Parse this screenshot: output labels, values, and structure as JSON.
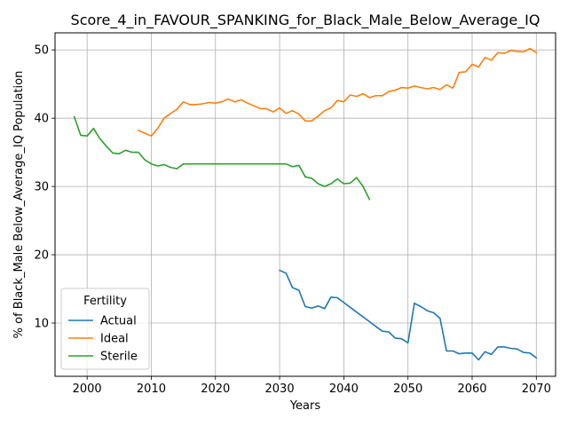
{
  "chart_data": {
    "type": "line",
    "title": "Score_4_in_FAVOUR_SPANKING_for_Black_Male_Below_Average_IQ",
    "xlabel": "Years",
    "ylabel": "% of Black_Male Below_Average_IQ Population",
    "xlim": [
      1995,
      2073
    ],
    "ylim": [
      2.2,
      52.5
    ],
    "xticks": [
      2000,
      2010,
      2020,
      2030,
      2040,
      2050,
      2060,
      2070
    ],
    "yticks": [
      10,
      20,
      30,
      40,
      50
    ],
    "grid": true,
    "legend": {
      "title": "Fertility",
      "placement": "bottom-left"
    },
    "series": [
      {
        "name": "Actual",
        "color": "#1f77b4",
        "x": [
          2030,
          2031,
          2032,
          2033,
          2034,
          2035,
          2036,
          2037,
          2038,
          2039,
          2040,
          2041,
          2042,
          2043,
          2044,
          2045,
          2046,
          2047,
          2048,
          2049,
          2050,
          2051,
          2052,
          2053,
          2054,
          2055,
          2056,
          2057,
          2058,
          2059,
          2060,
          2061,
          2062,
          2063,
          2064,
          2065,
          2066,
          2067,
          2068,
          2069,
          2070
        ],
        "y": [
          17.7,
          17.3,
          15.2,
          14.8,
          12.4,
          12.2,
          12.5,
          12.1,
          13.8,
          13.7,
          13.0,
          12.3,
          11.6,
          10.9,
          10.2,
          9.5,
          8.8,
          8.7,
          7.8,
          7.7,
          7.1,
          12.9,
          12.4,
          11.8,
          11.5,
          10.7,
          5.9,
          5.9,
          5.5,
          5.6,
          5.6,
          4.6,
          5.8,
          5.4,
          6.5,
          6.5,
          6.3,
          6.2,
          5.7,
          5.6,
          4.9
        ]
      },
      {
        "name": "Ideal",
        "color": "#ff7f0e",
        "x": [
          2008,
          2009,
          2010,
          2011,
          2012,
          2013,
          2014,
          2015,
          2016,
          2017,
          2018,
          2019,
          2020,
          2021,
          2022,
          2023,
          2024,
          2025,
          2026,
          2027,
          2028,
          2029,
          2030,
          2031,
          2032,
          2033,
          2034,
          2035,
          2036,
          2037,
          2038,
          2039,
          2040,
          2041,
          2042,
          2043,
          2044,
          2045,
          2046,
          2047,
          2048,
          2049,
          2050,
          2051,
          2052,
          2053,
          2054,
          2055,
          2056,
          2057,
          2058,
          2059,
          2060,
          2061,
          2062,
          2063,
          2064,
          2065,
          2066,
          2067,
          2068,
          2069,
          2070
        ],
        "y": [
          38.2,
          37.8,
          37.4,
          38.5,
          40.0,
          40.7,
          41.3,
          42.4,
          42.0,
          42.0,
          42.1,
          42.3,
          42.2,
          42.4,
          42.8,
          42.4,
          42.7,
          42.2,
          41.8,
          41.4,
          41.4,
          40.9,
          41.5,
          40.7,
          41.1,
          40.6,
          39.6,
          39.6,
          40.3,
          41.1,
          41.5,
          42.6,
          42.4,
          43.4,
          43.2,
          43.6,
          43.0,
          43.3,
          43.3,
          43.9,
          44.1,
          44.5,
          44.4,
          44.7,
          44.5,
          44.3,
          44.5,
          44.2,
          44.9,
          44.4,
          46.7,
          46.8,
          47.9,
          47.5,
          48.9,
          48.5,
          49.6,
          49.5,
          49.9,
          49.8,
          49.7,
          50.2,
          49.6
        ]
      },
      {
        "name": "Sterile",
        "color": "#2ca02c",
        "x": [
          1998,
          1999,
          2000,
          2001,
          2002,
          2003,
          2004,
          2005,
          2006,
          2007,
          2008,
          2009,
          2010,
          2011,
          2012,
          2013,
          2014,
          2015,
          2016,
          2017,
          2018,
          2019,
          2020,
          2021,
          2022,
          2023,
          2024,
          2025,
          2026,
          2027,
          2028,
          2029,
          2030,
          2031,
          2032,
          2033,
          2034,
          2035,
          2036,
          2037,
          2038,
          2039,
          2040,
          2041,
          2042,
          2043,
          2044
        ],
        "y": [
          40.2,
          37.5,
          37.4,
          38.5,
          37.0,
          35.9,
          34.9,
          34.8,
          35.3,
          35.0,
          35.0,
          33.9,
          33.3,
          33.0,
          33.2,
          32.8,
          32.6,
          33.3,
          33.3,
          33.3,
          33.3,
          33.3,
          33.3,
          33.3,
          33.3,
          33.3,
          33.3,
          33.3,
          33.3,
          33.3,
          33.3,
          33.3,
          33.3,
          33.3,
          32.9,
          33.1,
          31.4,
          31.2,
          30.4,
          30.0,
          30.4,
          31.1,
          30.4,
          30.5,
          31.3,
          30.0,
          28.1
        ]
      }
    ]
  }
}
